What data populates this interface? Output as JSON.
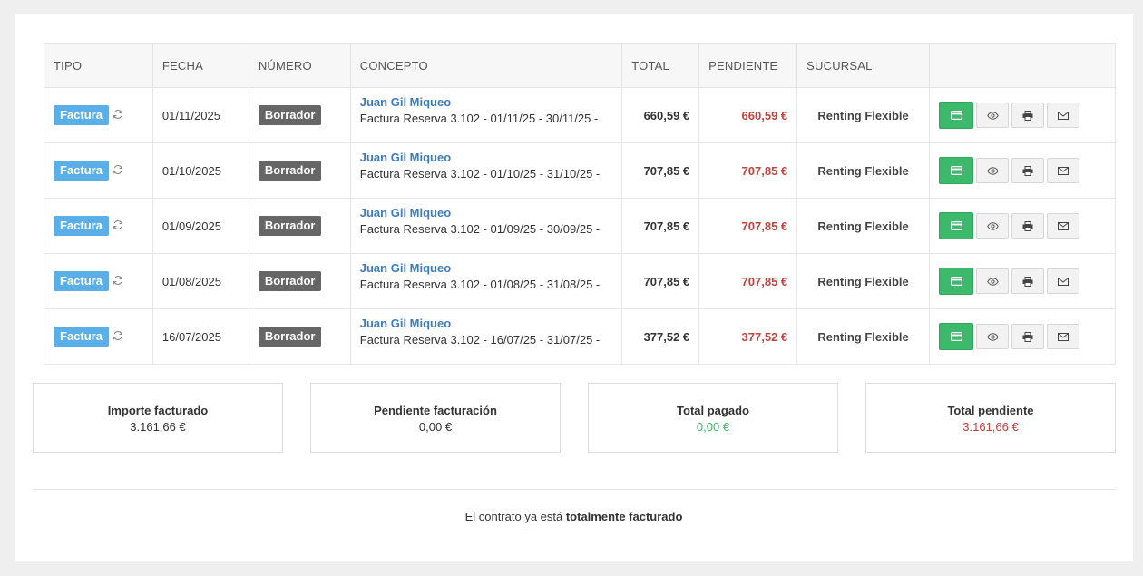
{
  "table": {
    "headers": {
      "tipo": "TIPO",
      "fecha": "FECHA",
      "numero": "NÚMERO",
      "concepto": "CONCEPTO",
      "total": "TOTAL",
      "pendiente": "PENDIENTE",
      "sucursal": "SUCURSAL"
    },
    "rows": [
      {
        "tipo": "Factura",
        "fecha": "01/11/2025",
        "numero": "Borrador",
        "cliente": "Juan Gil Miqueo",
        "concepto": "Factura Reserva 3.102 - 01/11/25 - 30/11/25 -",
        "total": "660,59 €",
        "pendiente": "660,59 €",
        "sucursal": "Renting Flexible"
      },
      {
        "tipo": "Factura",
        "fecha": "01/10/2025",
        "numero": "Borrador",
        "cliente": "Juan Gil Miqueo",
        "concepto": "Factura Reserva 3.102 - 01/10/25 - 31/10/25 -",
        "total": "707,85 €",
        "pendiente": "707,85 €",
        "sucursal": "Renting Flexible"
      },
      {
        "tipo": "Factura",
        "fecha": "01/09/2025",
        "numero": "Borrador",
        "cliente": "Juan Gil Miqueo",
        "concepto": "Factura Reserva 3.102 - 01/09/25 - 30/09/25 -",
        "total": "707,85 €",
        "pendiente": "707,85 €",
        "sucursal": "Renting Flexible"
      },
      {
        "tipo": "Factura",
        "fecha": "01/08/2025",
        "numero": "Borrador",
        "cliente": "Juan Gil Miqueo",
        "concepto": "Factura Reserva 3.102 - 01/08/25 - 31/08/25 -",
        "total": "707,85 €",
        "pendiente": "707,85 €",
        "sucursal": "Renting Flexible"
      },
      {
        "tipo": "Factura",
        "fecha": "16/07/2025",
        "numero": "Borrador",
        "cliente": "Juan Gil Miqueo",
        "concepto": "Factura Reserva 3.102 - 16/07/25 - 31/07/25 -",
        "total": "377,52 €",
        "pendiente": "377,52 €",
        "sucursal": "Renting Flexible"
      }
    ],
    "row_icons": [
      "sync-icon",
      "credit-card-icon",
      "eye-icon",
      "print-icon",
      "envelope-icon"
    ]
  },
  "summary": [
    {
      "label": "Importe facturado",
      "value": "3.161,66 €",
      "color": "#333333"
    },
    {
      "label": "Pendiente facturación",
      "value": "0,00 €",
      "color": "#333333"
    },
    {
      "label": "Total pagado",
      "value": "0,00 €",
      "color": "#3cb96a"
    },
    {
      "label": "Total pendiente",
      "value": "3.161,66 €",
      "color": "#c9413b"
    }
  ],
  "footer": {
    "prefix": "El contrato ya está ",
    "emphasis": "totalmente facturado"
  },
  "colors": {
    "type_badge": "#5aafe8",
    "draft_badge": "#666666",
    "client_link": "#3d7bc4",
    "pending": "#c9413b",
    "pay_button": "#3cb96a"
  }
}
